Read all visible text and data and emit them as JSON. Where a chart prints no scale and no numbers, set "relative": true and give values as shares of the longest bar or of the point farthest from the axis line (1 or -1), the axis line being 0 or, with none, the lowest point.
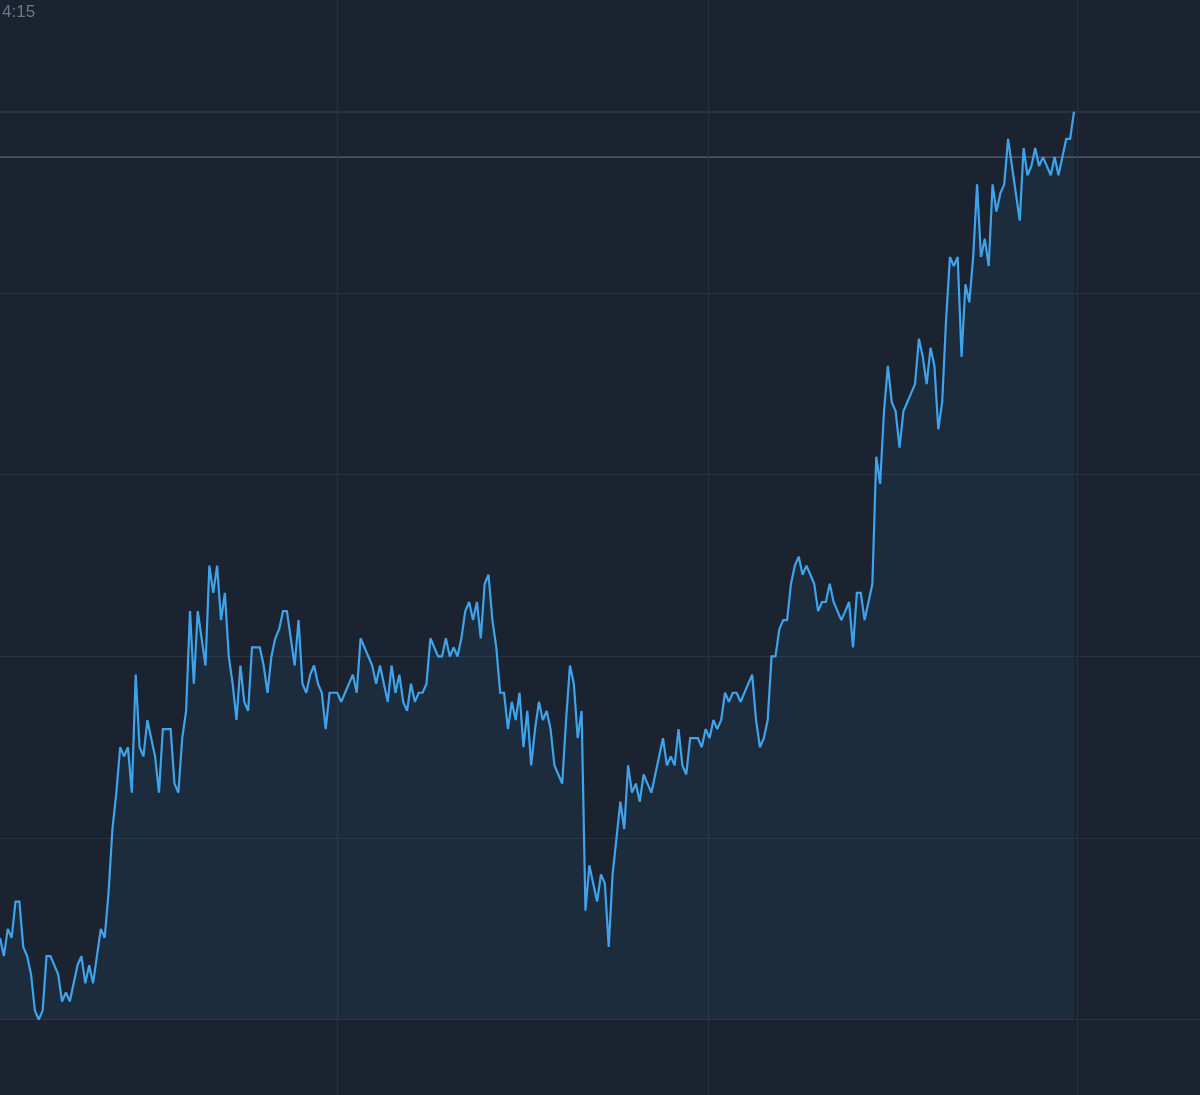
{
  "chart_data": {
    "type": "area",
    "relative": true,
    "grid": true,
    "categories": [
      null,
      null,
      null,
      null,
      null,
      null,
      null,
      null,
      null,
      null,
      null,
      null,
      null,
      null,
      null,
      null,
      null,
      null,
      null,
      null,
      null,
      null,
      null,
      null,
      null,
      null,
      null,
      null,
      null,
      null,
      null,
      null,
      null,
      null,
      null,
      null,
      null,
      null,
      null,
      null,
      null,
      null,
      null,
      null,
      null,
      null,
      null,
      null,
      null,
      null,
      null,
      null,
      null,
      null,
      null,
      null,
      null,
      null,
      null,
      null,
      null,
      null,
      null,
      null,
      null,
      null,
      null,
      null,
      null,
      null,
      null,
      null,
      null,
      null,
      null,
      null,
      null,
      null,
      null,
      null,
      null,
      null,
      null,
      null,
      null,
      null,
      null,
      null,
      null,
      null,
      null,
      null,
      null,
      null,
      null,
      null,
      null,
      null,
      null,
      null,
      null,
      null,
      null,
      null,
      null,
      null,
      null,
      null,
      null,
      null,
      null,
      null,
      null,
      null,
      null,
      null,
      null,
      null,
      null,
      null,
      null,
      null,
      null,
      null,
      null,
      null,
      null,
      null,
      null,
      null,
      null,
      null,
      null,
      null,
      null,
      null,
      null,
      null,
      null,
      null,
      null,
      null,
      null,
      null,
      null,
      null,
      null,
      null,
      null,
      null,
      null,
      null,
      null,
      null,
      null,
      null,
      null,
      null,
      null,
      null,
      null,
      null,
      null,
      null,
      null,
      null,
      null,
      null,
      null,
      null,
      null,
      null,
      null,
      null,
      null,
      null,
      null,
      null,
      null,
      null,
      null,
      null,
      null,
      null,
      null,
      null,
      null,
      null,
      null,
      null,
      null,
      null,
      null,
      null,
      null,
      null,
      null,
      null,
      null,
      null,
      null,
      null,
      null,
      null,
      null,
      null,
      null,
      null,
      null,
      null,
      null,
      null,
      null,
      null,
      null,
      null,
      null,
      null,
      null,
      null,
      null,
      null,
      null,
      null,
      null,
      null,
      null,
      null,
      null,
      null,
      null,
      null,
      null,
      null,
      null,
      null,
      null,
      null,
      null,
      null,
      null,
      null,
      null,
      null,
      null,
      null,
      null,
      null,
      null,
      null,
      null,
      null,
      null,
      null,
      null,
      null,
      null,
      null,
      null,
      null,
      null,
      null,
      null,
      null,
      null,
      null,
      null,
      null,
      null,
      null,
      null,
      null,
      null,
      null,
      null,
      null,
      null,
      null
    ],
    "annotations": [
      "4:15"
    ],
    "ref_lines": [
      {
        "axis": "y",
        "value": 1,
        "color": "#5b6472"
      },
      {
        "axis": "y",
        "value": 0.95,
        "color": "#5b6472"
      }
    ],
    "series": [
      {
        "color": "#3fa3ec",
        "line_style": "solid",
        "values": [
          0.09,
          0.07,
          0.1,
          0.09,
          0.13,
          0.13,
          0.08,
          0.07,
          0.05,
          0.01,
          0,
          0.01,
          0.07,
          0.07,
          0.06,
          0.05,
          0.02,
          0.03,
          0.02,
          0.04,
          0.06,
          0.07,
          0.04,
          0.06,
          0.04,
          0.07,
          0.1,
          0.09,
          0.14,
          0.21,
          0.25,
          0.3,
          0.29,
          0.3,
          0.25,
          0.38,
          0.3,
          0.29,
          0.33,
          0.31,
          0.29,
          0.25,
          0.32,
          0.32,
          0.32,
          0.26,
          0.25,
          0.31,
          0.34,
          0.45,
          0.37,
          0.45,
          0.42,
          0.39,
          0.5,
          0.47,
          0.5,
          0.44,
          0.47,
          0.4,
          0.37,
          0.33,
          0.39,
          0.35,
          0.34,
          0.41,
          0.41,
          0.41,
          0.39,
          0.36,
          0.4,
          0.42,
          0.43,
          0.45,
          0.45,
          0.42,
          0.39,
          0.44,
          0.37,
          0.36,
          0.38,
          0.39,
          0.37,
          0.36,
          0.32,
          0.36,
          0.36,
          0.36,
          0.35,
          0.36,
          0.37,
          0.38,
          0.36,
          0.42,
          0.41,
          0.4,
          0.39,
          0.37,
          0.39,
          0.37,
          0.35,
          0.39,
          0.36,
          0.38,
          0.35,
          0.34,
          0.37,
          0.35,
          0.36,
          0.36,
          0.37,
          0.42,
          0.41,
          0.4,
          0.4,
          0.42,
          0.4,
          0.41,
          0.4,
          0.42,
          0.45,
          0.46,
          0.44,
          0.46,
          0.42,
          0.48,
          0.49,
          0.44,
          0.41,
          0.36,
          0.36,
          0.32,
          0.35,
          0.33,
          0.36,
          0.3,
          0.34,
          0.28,
          0.32,
          0.35,
          0.33,
          0.34,
          0.32,
          0.28,
          0.27,
          0.26,
          0.33,
          0.39,
          0.37,
          0.31,
          0.34,
          0.12,
          0.17,
          0.15,
          0.13,
          0.16,
          0.15,
          0.08,
          0.16,
          0.2,
          0.24,
          0.21,
          0.28,
          0.25,
          0.26,
          0.24,
          0.27,
          0.26,
          0.25,
          0.27,
          0.29,
          0.31,
          0.28,
          0.29,
          0.28,
          0.32,
          0.28,
          0.27,
          0.31,
          0.31,
          0.31,
          0.3,
          0.32,
          0.31,
          0.33,
          0.32,
          0.33,
          0.36,
          0.35,
          0.36,
          0.36,
          0.35,
          0.36,
          0.37,
          0.38,
          0.33,
          0.3,
          0.31,
          0.33,
          0.4,
          0.4,
          0.43,
          0.44,
          0.44,
          0.48,
          0.5,
          0.51,
          0.49,
          0.5,
          0.49,
          0.48,
          0.45,
          0.46,
          0.46,
          0.48,
          0.46,
          0.45,
          0.44,
          0.45,
          0.46,
          0.41,
          0.47,
          0.47,
          0.44,
          0.46,
          0.48,
          0.62,
          0.59,
          0.67,
          0.72,
          0.68,
          0.67,
          0.63,
          0.67,
          0.68,
          0.69,
          0.7,
          0.75,
          0.73,
          0.7,
          0.74,
          0.72,
          0.65,
          0.68,
          0.77,
          0.84,
          0.83,
          0.84,
          0.73,
          0.81,
          0.79,
          0.84,
          0.92,
          0.84,
          0.86,
          0.83,
          0.92,
          0.89,
          0.91,
          0.92,
          0.97,
          0.94,
          0.91,
          0.88,
          0.96,
          0.93,
          0.94,
          0.96,
          0.94,
          0.95,
          0.94,
          0.93,
          0.95,
          0.93,
          0.95,
          0.97,
          0.97,
          1
        ]
      }
    ]
  }
}
